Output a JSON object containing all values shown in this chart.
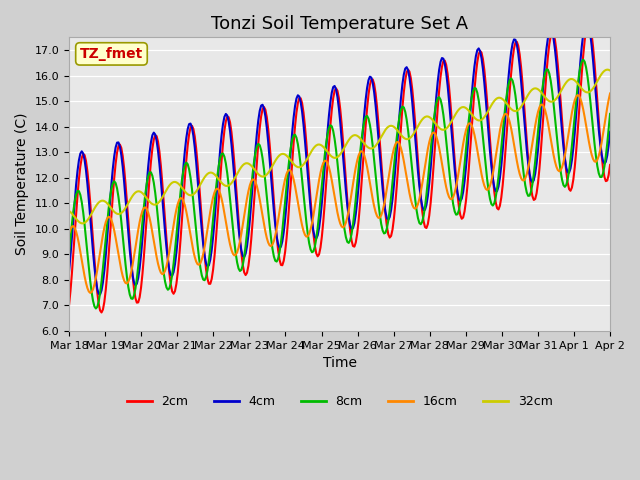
{
  "title": "Tonzi Soil Temperature Set A",
  "xlabel": "Time",
  "ylabel": "Soil Temperature (C)",
  "ylim": [
    6.0,
    17.5
  ],
  "yticks": [
    6.0,
    7.0,
    8.0,
    9.0,
    10.0,
    11.0,
    12.0,
    13.0,
    14.0,
    15.0,
    16.0,
    17.0
  ],
  "annotation_text": "TZ_fmet",
  "annotation_color": "#cc0000",
  "annotation_bg": "#ffffcc",
  "legend_items": [
    "2cm",
    "4cm",
    "8cm",
    "16cm",
    "32cm"
  ],
  "line_colors": [
    "#ff0000",
    "#0000cc",
    "#00bb00",
    "#ff8800",
    "#cccc00"
  ],
  "xtick_labels": [
    "Mar 18",
    "Mar 19",
    "Mar 20",
    "Mar 21",
    "Mar 22",
    "Mar 23",
    "Mar 24",
    "Mar 25",
    "Mar 26",
    "Mar 27",
    "Mar 28",
    "Mar 29",
    "Mar 30",
    "Mar 31",
    "Apr 1",
    "Apr 2"
  ],
  "title_fontsize": 13,
  "axis_fontsize": 10,
  "tick_fontsize": 8
}
